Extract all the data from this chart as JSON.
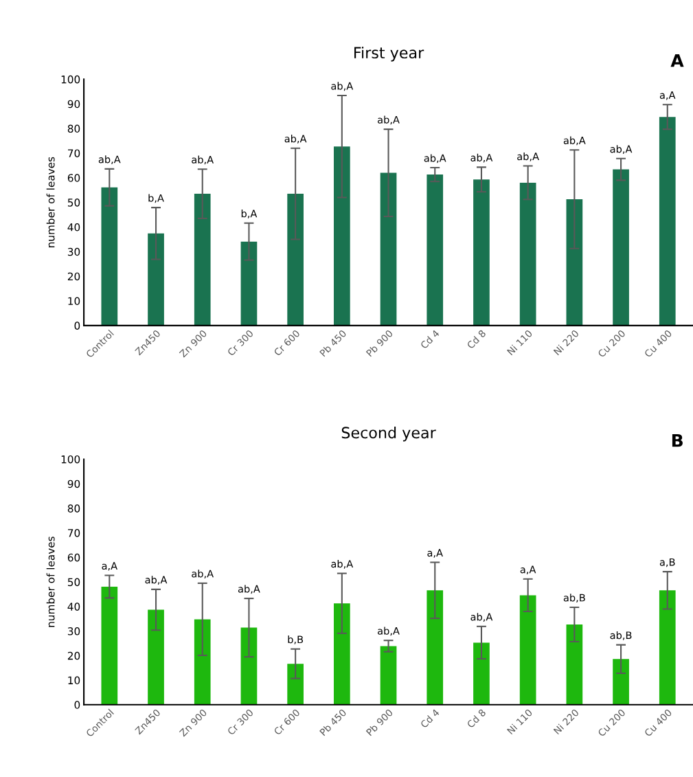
{
  "chart_data": [
    {
      "type": "bar",
      "title": "First year",
      "ylabel": "number of leaves",
      "categories": [
        "Control",
        "Zn450",
        "Zn 900",
        "Cr 300",
        "Cr 600",
        "Pb 450",
        "Pb 900",
        "Cd 4",
        "Cd 8",
        "Ni 110",
        "Ni 220",
        "Cu 200",
        "Cu 400"
      ],
      "values": [
        56.1,
        37.4,
        53.5,
        34.1,
        53.5,
        72.7,
        62.0,
        61.3,
        59.3,
        58.0,
        51.3,
        63.4,
        84.7
      ],
      "errors": [
        7.5,
        10.5,
        10,
        7.5,
        18.5,
        20.7,
        17.7,
        2.8,
        5,
        6.8,
        20,
        4.4,
        5
      ],
      "color": "#1a7350",
      "ylim": [
        0,
        100
      ],
      "yticks": [
        0,
        10,
        20,
        30,
        40,
        50,
        60,
        70,
        80,
        90,
        100
      ],
      "grid": false,
      "legend": false,
      "annotations": [
        "A",
        {
          "text": "ab,A",
          "x": "Control",
          "y": 63.6
        },
        {
          "text": "b,A",
          "x": "Zn450",
          "y": 47.9
        },
        {
          "text": "ab,A",
          "x": "Zn 900",
          "y": 63.5
        },
        {
          "text": "b,A",
          "x": "Cr 300",
          "y": 41.6
        },
        {
          "text": "ab,A",
          "x": "Cr 600",
          "y": 72.0
        },
        {
          "text": "ab,A",
          "x": "Pb 450",
          "y": 93.4
        },
        {
          "text": "ab,A",
          "x": "Pb 900",
          "y": 79.7
        },
        {
          "text": "ab,A",
          "x": "Cd 4",
          "y": 64.1
        },
        {
          "text": "ab,A",
          "x": "Cd 8",
          "y": 64.3
        },
        {
          "text": "ab,A",
          "x": "Ni 110",
          "y": 64.8
        },
        {
          "text": "ab,A",
          "x": "Ni 220",
          "y": 71.3
        },
        {
          "text": "ab,A",
          "x": "Cu 200",
          "y": 67.8
        },
        {
          "text": "a,A",
          "x": "Cu 400",
          "y": 89.7
        }
      ]
    },
    {
      "type": "bar",
      "title": "Second year",
      "ylabel": "number of leaves",
      "categories": [
        "Control",
        "Zn450",
        "Zn 900",
        "Cr 300",
        "Cr 600",
        "Pb 450",
        "Pb 900",
        "Cd 4",
        "Cd 8",
        "Ni 110",
        "Ni 220",
        "Cu 200",
        "Cu 400"
      ],
      "values": [
        48.1,
        38.7,
        34.8,
        31.4,
        16.7,
        41.3,
        23.9,
        46.6,
        25.3,
        44.6,
        32.7,
        18.6,
        46.6
      ],
      "errors": [
        4.6,
        8.3,
        14.7,
        11.9,
        6,
        12.2,
        2.3,
        11.4,
        6.6,
        6.6,
        7,
        5.8,
        7.6
      ],
      "color": "#1eb80e",
      "ylim": [
        0,
        100
      ],
      "yticks": [
        0,
        10,
        20,
        30,
        40,
        50,
        60,
        70,
        80,
        90,
        100
      ],
      "grid": false,
      "legend": false,
      "annotations": [
        "B",
        {
          "text": "a,A",
          "x": "Control",
          "y": 52.7
        },
        {
          "text": "ab,A",
          "x": "Zn450",
          "y": 47.0
        },
        {
          "text": "ab,A",
          "x": "Zn 900",
          "y": 49.5
        },
        {
          "text": "ab,A",
          "x": "Cr 300",
          "y": 43.3
        },
        {
          "text": "b,B",
          "x": "Cr 600",
          "y": 22.7
        },
        {
          "text": "ab,A",
          "x": "Pb 450",
          "y": 53.5
        },
        {
          "text": "ab,A",
          "x": "Pb 900",
          "y": 26.2
        },
        {
          "text": "a,A",
          "x": "Cd 4",
          "y": 58.0
        },
        {
          "text": "ab,A",
          "x": "Cd 8",
          "y": 31.9
        },
        {
          "text": "a,A",
          "x": "Ni 110",
          "y": 51.2
        },
        {
          "text": "ab,B",
          "x": "Ni 220",
          "y": 39.7
        },
        {
          "text": "ab,B",
          "x": "Cu 200",
          "y": 24.4
        },
        {
          "text": "a,B",
          "x": "Cu 400",
          "y": 54.2
        }
      ]
    }
  ]
}
